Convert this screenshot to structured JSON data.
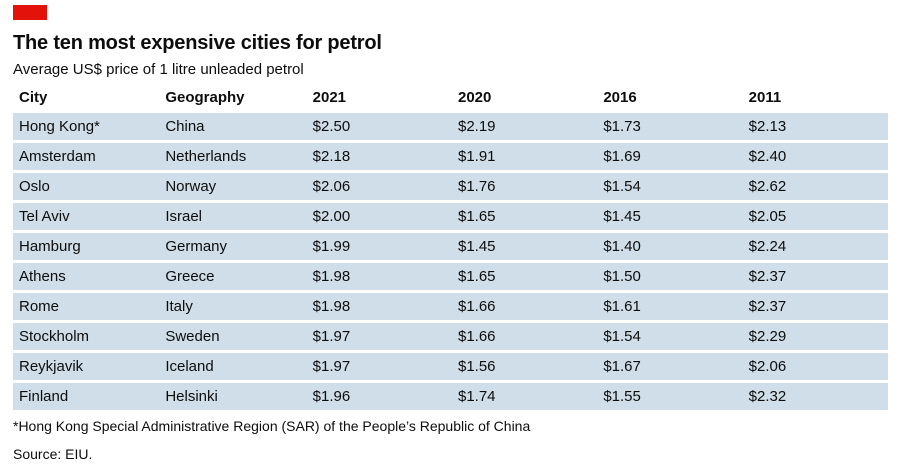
{
  "colors": {
    "accent": "#e3120b",
    "row_background": "#cfdee8",
    "text": "#0d0d0d"
  },
  "header": {
    "title": "The ten most expensive cities for petrol",
    "subtitle": "Average US$ price of 1 litre unleaded petrol"
  },
  "chart_data": {
    "type": "table",
    "columns": [
      "City",
      "Geography",
      "2021",
      "2020",
      "2016",
      "2011"
    ],
    "rows": [
      [
        "Hong Kong*",
        "China",
        "$2.50",
        "$2.19",
        "$1.73",
        "$2.13"
      ],
      [
        "Amsterdam",
        "Netherlands",
        "$2.18",
        "$1.91",
        "$1.69",
        "$2.40"
      ],
      [
        "Oslo",
        "Norway",
        "$2.06",
        "$1.76",
        "$1.54",
        "$2.62"
      ],
      [
        "Tel Aviv",
        "Israel",
        "$2.00",
        "$1.65",
        "$1.45",
        "$2.05"
      ],
      [
        "Hamburg",
        "Germany",
        "$1.99",
        "$1.45",
        "$1.40",
        "$2.24"
      ],
      [
        "Athens",
        "Greece",
        "$1.98",
        "$1.65",
        "$1.50",
        "$2.37"
      ],
      [
        "Rome",
        "Italy",
        "$1.98",
        "$1.66",
        "$1.61",
        "$2.37"
      ],
      [
        "Stockholm",
        "Sweden",
        "$1.97",
        "$1.66",
        "$1.54",
        "$2.29"
      ],
      [
        "Reykjavik",
        "Iceland",
        "$1.97",
        "$1.56",
        "$1.67",
        "$2.06"
      ],
      [
        "Finland",
        "Helsinki",
        "$1.96",
        "$1.74",
        "$1.55",
        "$2.32"
      ]
    ],
    "title": "The ten most expensive cities for petrol",
    "subtitle": "Average US$ price of 1 litre unleaded petrol",
    "unit": "US$ per litre"
  },
  "footnote": "*Hong Kong Special Administrative Region (SAR) of the People’s Republic of China",
  "source": "Source: EIU."
}
